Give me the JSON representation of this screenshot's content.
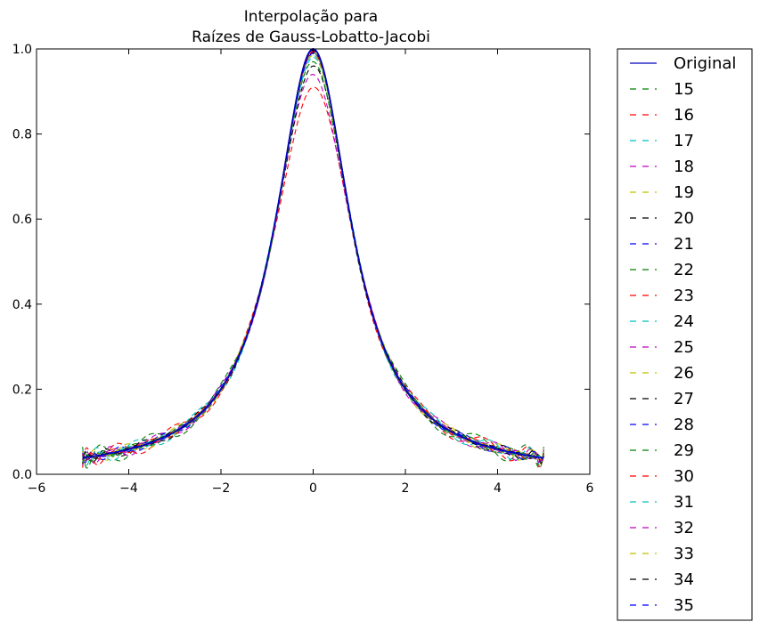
{
  "chart_data": {
    "type": "line",
    "title_lines": [
      "Interpolação para",
      "Raízes de Gauss-Lobatto-Jacobi"
    ],
    "xlabel": "",
    "ylabel": "",
    "xlim": [
      -6,
      6
    ],
    "ylim": [
      0.0,
      1.0
    ],
    "x_ticks": [
      -6,
      -4,
      -2,
      0,
      2,
      4,
      6
    ],
    "x_tick_labels": [
      "−6",
      "−4",
      "−2",
      "0",
      "2",
      "4",
      "6"
    ],
    "y_ticks": [
      0.0,
      0.2,
      0.4,
      0.6,
      0.8,
      1.0
    ],
    "y_tick_labels": [
      "0.0",
      "0.2",
      "0.4",
      "0.6",
      "0.8",
      "1.0"
    ],
    "grid": false,
    "legend_position": "outside-right",
    "x_domain": [
      -5,
      5
    ],
    "series": [
      {
        "name": "Original",
        "color": "#0000bf",
        "style": "solid",
        "degree": null,
        "peak": 1.0
      },
      {
        "name": "15",
        "color": "#008000",
        "style": "dashed",
        "degree": 15,
        "peak": 0.985
      },
      {
        "name": "16",
        "color": "#ff0000",
        "style": "dashed",
        "degree": 16,
        "peak": 0.91
      },
      {
        "name": "17",
        "color": "#00bfbf",
        "style": "dashed",
        "degree": 17,
        "peak": 0.99
      },
      {
        "name": "18",
        "color": "#bf00bf",
        "style": "dashed",
        "degree": 18,
        "peak": 0.94
      },
      {
        "name": "19",
        "color": "#bfbf00",
        "style": "dashed",
        "degree": 19,
        "peak": 0.99
      },
      {
        "name": "20",
        "color": "#000000",
        "style": "dashed",
        "degree": 20,
        "peak": 0.96
      },
      {
        "name": "21",
        "color": "#0000ff",
        "style": "dashed",
        "degree": 21,
        "peak": 0.995
      },
      {
        "name": "22",
        "color": "#008000",
        "style": "dashed",
        "degree": 22,
        "peak": 0.97
      },
      {
        "name": "23",
        "color": "#ff0000",
        "style": "dashed",
        "degree": 23,
        "peak": 0.997
      },
      {
        "name": "24",
        "color": "#00bfbf",
        "style": "dashed",
        "degree": 24,
        "peak": 0.98
      },
      {
        "name": "25",
        "color": "#bf00bf",
        "style": "dashed",
        "degree": 25,
        "peak": 0.998
      },
      {
        "name": "26",
        "color": "#bfbf00",
        "style": "dashed",
        "degree": 26,
        "peak": 0.985
      },
      {
        "name": "27",
        "color": "#000000",
        "style": "dashed",
        "degree": 27,
        "peak": 0.999
      },
      {
        "name": "28",
        "color": "#0000ff",
        "style": "dashed",
        "degree": 28,
        "peak": 0.99
      },
      {
        "name": "29",
        "color": "#008000",
        "style": "dashed",
        "degree": 29,
        "peak": 0.999
      },
      {
        "name": "30",
        "color": "#ff0000",
        "style": "dashed",
        "degree": 30,
        "peak": 0.993
      },
      {
        "name": "31",
        "color": "#00bfbf",
        "style": "dashed",
        "degree": 31,
        "peak": 1.0
      },
      {
        "name": "32",
        "color": "#bf00bf",
        "style": "dashed",
        "degree": 32,
        "peak": 0.995
      },
      {
        "name": "33",
        "color": "#bfbf00",
        "style": "dashed",
        "degree": 33,
        "peak": 1.0
      },
      {
        "name": "34",
        "color": "#000000",
        "style": "dashed",
        "degree": 34,
        "peak": 0.997
      },
      {
        "name": "35",
        "color": "#0000ff",
        "style": "dashed",
        "degree": 35,
        "peak": 1.0
      }
    ]
  }
}
